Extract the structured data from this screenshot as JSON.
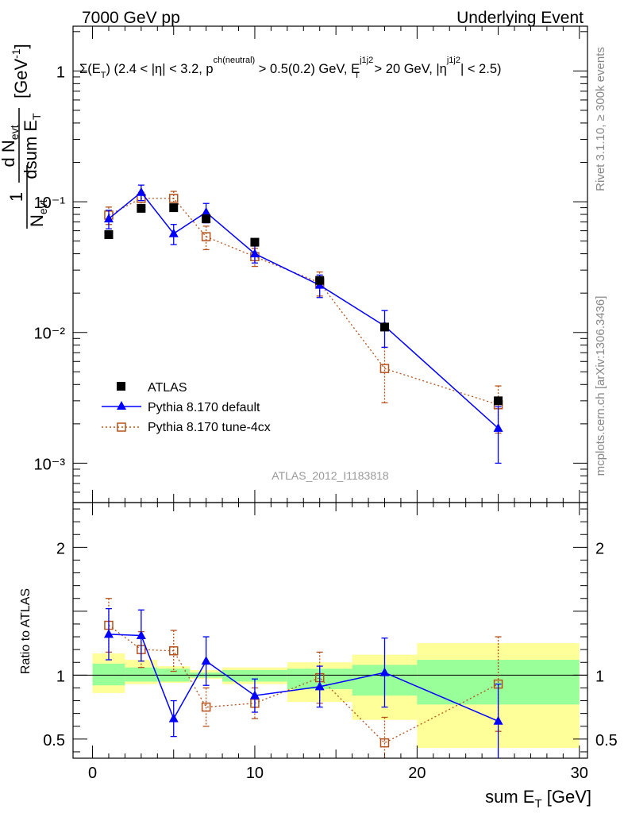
{
  "header": {
    "left": "7000 GeV pp",
    "right": "Underlying Event",
    "selection": "Σ(E_T) (2.4 < |η| < 3.2, p^ch(neutral) > 0.5(0.2) GeV, E_T^j1j2 > 20 GeV, |η^j1j2| < 2.5)"
  },
  "side_labels": {
    "rivet": "Rivet 3.1.10, ≥ 300k events",
    "mcplots": "mcplots.cern.ch [arXiv:1306.3436]"
  },
  "analysis_id": "ATLAS_2012_I1183818",
  "colors": {
    "atlas": "#000000",
    "pythia_default": "#0000ff",
    "pythia_tune": "#b5521b",
    "band_inner": "#99ff99",
    "band_outer": "#ffff99"
  },
  "chart_data": [
    {
      "type": "scatter",
      "panel": "main",
      "ylabel": "1/N_evt dN_evt/dsum E_T [GeV^-1]",
      "xlim": [
        -1.2,
        30.5
      ],
      "ylim": [
        0.0005,
        2.2
      ],
      "yscale": "log",
      "y_ticks": [
        {
          "v": 1,
          "label": "1"
        },
        {
          "v": 0.1,
          "label": "10⁻¹"
        },
        {
          "v": 0.01,
          "label": "10⁻²"
        },
        {
          "v": 0.001,
          "label": "10⁻³"
        }
      ],
      "legend_position": "bottom-left",
      "series": [
        {
          "name": "ATLAS",
          "marker": "square-filled",
          "line": "none",
          "x": [
            1,
            3,
            5,
            7,
            10,
            14,
            18,
            25
          ],
          "y": [
            0.056,
            0.089,
            0.09,
            0.074,
            0.049,
            0.025,
            0.011,
            0.003
          ],
          "err": [
            0,
            0,
            0,
            0,
            0,
            0,
            0,
            0
          ]
        },
        {
          "name": "Pythia 8.170 default",
          "marker": "triangle-filled",
          "line": "solid",
          "x": [
            1,
            3,
            5,
            7,
            10,
            14,
            18,
            25
          ],
          "y": [
            0.074,
            0.118,
            0.057,
            0.083,
            0.04,
            0.023,
            0.0112,
            0.00185
          ],
          "err": [
            0.012,
            0.016,
            0.01,
            0.014,
            0.006,
            0.0045,
            0.0035,
            0.00085
          ]
        },
        {
          "name": "Pythia 8.170 tune-4cx",
          "marker": "square-open",
          "line": "dotted",
          "x": [
            1,
            3,
            5,
            7,
            10,
            14,
            18,
            25
          ],
          "y": [
            0.079,
            0.106,
            0.106,
            0.054,
            0.038,
            0.024,
            0.0053,
            0.0028
          ],
          "err": [
            0.012,
            0.012,
            0.014,
            0.011,
            0.006,
            0.005,
            0.0024,
            0.0011
          ]
        }
      ]
    },
    {
      "type": "scatter",
      "panel": "ratio",
      "xlabel": "sum E_T [GeV]",
      "ylabel": "Ratio to ATLAS",
      "xlim": [
        -1.2,
        30.5
      ],
      "ylim": [
        0.35,
        2.35
      ],
      "x_ticks": [
        0,
        10,
        20,
        30
      ],
      "y_ticks": [
        0.5,
        1,
        2
      ],
      "reference_line": 1,
      "bands": {
        "edges": [
          0,
          2,
          4,
          6,
          8,
          12,
          16,
          20,
          30
        ],
        "inner_lo": [
          0.92,
          0.95,
          0.95,
          0.98,
          0.95,
          0.89,
          0.84,
          0.77
        ],
        "inner_hi": [
          1.09,
          1.06,
          1.05,
          1.02,
          1.04,
          1.05,
          1.08,
          1.12
        ],
        "outer_lo": [
          0.86,
          0.93,
          0.94,
          0.97,
          0.93,
          0.79,
          0.65,
          0.43
        ],
        "outer_hi": [
          1.17,
          1.12,
          1.07,
          1.04,
          1.06,
          1.1,
          1.16,
          1.25
        ]
      },
      "series": [
        {
          "name": "Pythia 8.170 default",
          "marker": "triangle-filled",
          "line": "solid",
          "x": [
            1,
            3,
            5,
            7,
            10,
            14,
            18,
            25
          ],
          "y": [
            1.32,
            1.31,
            0.66,
            1.11,
            0.84,
            0.91,
            1.02,
            0.64
          ],
          "err": [
            0.2,
            0.2,
            0.14,
            0.19,
            0.13,
            0.16,
            0.27,
            0.29
          ]
        },
        {
          "name": "Pythia 8.170 tune-4cx",
          "marker": "square-open",
          "line": "dotted",
          "x": [
            1,
            3,
            5,
            7,
            10,
            14,
            18,
            25
          ],
          "y": [
            1.39,
            1.2,
            1.19,
            0.75,
            0.78,
            0.98,
            0.47,
            0.93
          ],
          "err": [
            0.21,
            0.14,
            0.16,
            0.15,
            0.12,
            0.2,
            0.2,
            0.37
          ]
        }
      ]
    }
  ]
}
